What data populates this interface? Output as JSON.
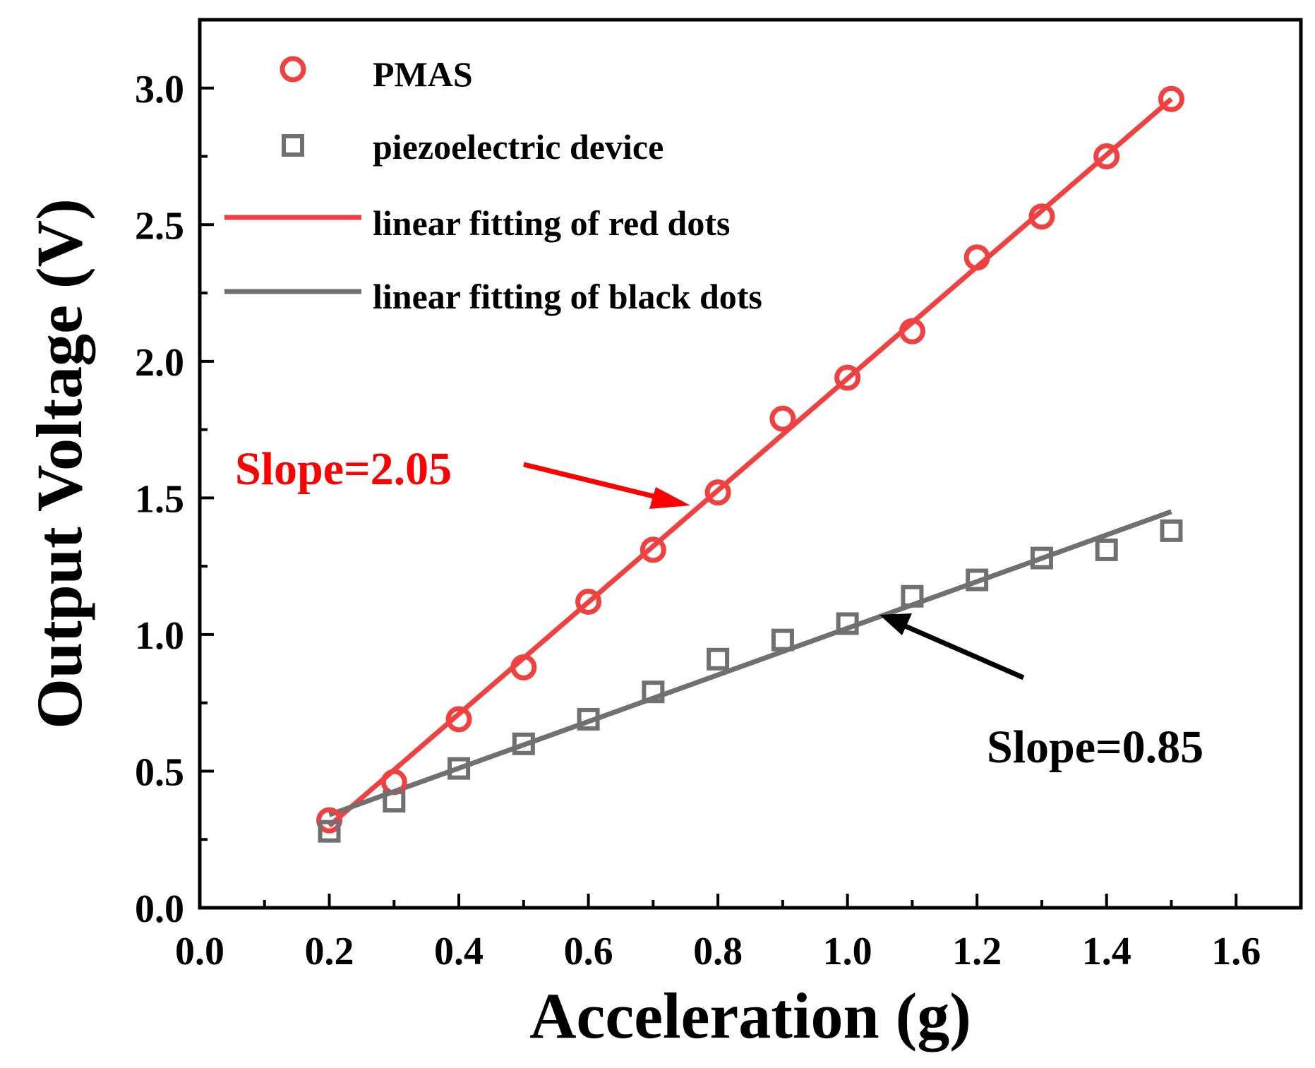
{
  "chart_data": {
    "type": "scatter",
    "xlabel": "Acceleration (g)",
    "ylabel": "Output Voltage (V)",
    "xlim": [
      0.0,
      1.7
    ],
    "ylim": [
      0.0,
      3.25
    ],
    "x_ticks": [
      "0.0",
      "0.2",
      "0.4",
      "0.6",
      "0.8",
      "1.0",
      "1.2",
      "1.4",
      "1.6"
    ],
    "y_ticks": [
      "0.0",
      "0.5",
      "1.0",
      "1.5",
      "2.0",
      "2.5",
      "3.0"
    ],
    "x_tick_values": [
      0.0,
      0.2,
      0.4,
      0.6,
      0.8,
      1.0,
      1.2,
      1.4,
      1.6
    ],
    "y_tick_values": [
      0.0,
      0.5,
      1.0,
      1.5,
      2.0,
      2.5,
      3.0
    ],
    "legend_position": "top-left",
    "grid": false,
    "series": [
      {
        "name": "PMAS",
        "marker": "circle",
        "color": "#f04040",
        "x": [
          0.2,
          0.3,
          0.4,
          0.5,
          0.6,
          0.7,
          0.8,
          0.9,
          1.0,
          1.1,
          1.2,
          1.3,
          1.4,
          1.5
        ],
        "y": [
          0.32,
          0.46,
          0.69,
          0.88,
          1.12,
          1.31,
          1.52,
          1.79,
          1.94,
          2.11,
          2.38,
          2.53,
          2.75,
          2.96
        ]
      },
      {
        "name": "piezoelectric device",
        "marker": "square",
        "color": "#707070",
        "x": [
          0.2,
          0.3,
          0.4,
          0.5,
          0.6,
          0.7,
          0.8,
          0.9,
          1.0,
          1.1,
          1.2,
          1.3,
          1.4,
          1.5
        ],
        "y": [
          0.28,
          0.39,
          0.51,
          0.6,
          0.69,
          0.79,
          0.91,
          0.98,
          1.04,
          1.14,
          1.2,
          1.28,
          1.31,
          1.38
        ]
      }
    ],
    "fits": [
      {
        "name": "linear fitting of red dots",
        "color": "#f04040",
        "x": [
          0.2,
          1.5
        ],
        "y": [
          0.3,
          2.96
        ]
      },
      {
        "name": "linear fitting of black dots",
        "color": "#707070",
        "x": [
          0.2,
          1.5
        ],
        "y": [
          0.34,
          1.45
        ]
      }
    ],
    "annotations": [
      {
        "text": "Slope=2.05",
        "color": "#ff0000"
      },
      {
        "text": "Slope=0.85",
        "color": "#000000"
      }
    ]
  }
}
